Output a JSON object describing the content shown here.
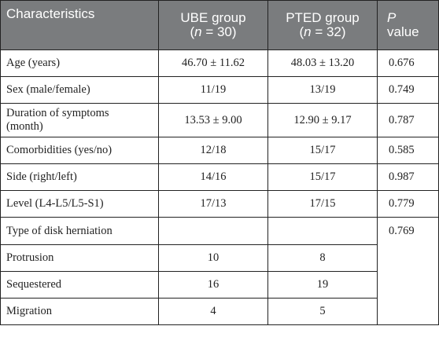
{
  "table": {
    "header": {
      "characteristics": "Characteristics",
      "ube_group": "UBE group",
      "ube_n_var": "n",
      "ube_n_rest": " = 30)",
      "pted_group": "PTED group",
      "pted_n_var": "n",
      "pted_n_rest": " = 32)",
      "open_paren": "(",
      "p_label": "P",
      "value_label": "value"
    },
    "rows": [
      {
        "label": "Age (years)",
        "ube": "46.70 ± 11.62",
        "pted": "48.03 ± 13.20",
        "p": "0.676"
      },
      {
        "label": "Sex (male/female)",
        "ube": "11/19",
        "pted": "13/19",
        "p": "0.749"
      },
      {
        "label_line1": "Duration of symptoms",
        "label_line2": "(month)",
        "ube": "13.53 ± 9.00",
        "pted": "12.90 ± 9.17",
        "p": "0.787"
      },
      {
        "label": "Comorbidities (yes/no)",
        "ube": "12/18",
        "pted": "15/17",
        "p": "0.585"
      },
      {
        "label": "Side (right/left)",
        "ube": "14/16",
        "pted": "15/17",
        "p": "0.987"
      },
      {
        "label": "Level (L4-L5/L5-S1)",
        "ube": "17/13",
        "pted": "17/15",
        "p": "0.779"
      },
      {
        "label": "Type of disk herniation",
        "ube": "",
        "pted": "",
        "p": "0.769"
      },
      {
        "label": "Protrusion",
        "ube": "10",
        "pted": "8"
      },
      {
        "label": "Sequestered",
        "ube": "16",
        "pted": "19"
      },
      {
        "label": "Migration",
        "ube": "4",
        "pted": "5"
      }
    ]
  }
}
